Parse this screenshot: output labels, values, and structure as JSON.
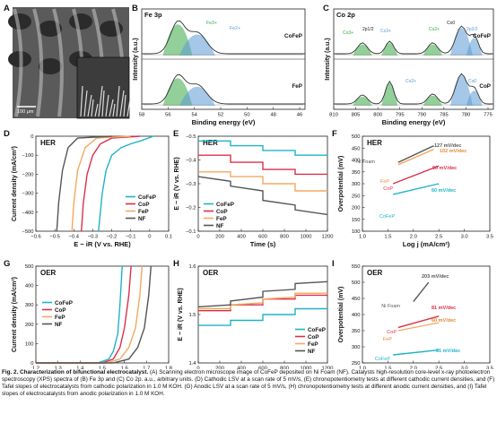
{
  "figure": {
    "caption_title": "Fig. 2. Characterization of bifunctional electrocatalyst.",
    "caption_body": "(A) Scanning electron microscope image of CoFeP deposited on Ni Foam (NF). Catalysts high-resolution core-level x-ray photoelectron spectroscopy (XPS) spectra of (B) Fe 3p and (C) Co 2p. a.u., arbitrary units. (D) Cathodic LSV at a scan rate of 5 mV/s, (E) chronopotentiometry tests at different cathodic current densities, and (F) Tafel slopes of electrocatalysts from cathodic polarization in 1.0 M KOH. (G) Anodic LSV at a scan rate of 5 mV/s, (H) chronopotentiometry tests at different anodic current densities, and (I) Tafel slopes of electrocatalysts from anodic polarization in 1.0 M KOH."
  },
  "colors": {
    "CoFeP": "#1fb3c8",
    "CoP": "#d9304a",
    "FeP": "#f4a860",
    "NF": "#555555",
    "green": "#39a845",
    "blue": "#5b9ad5"
  },
  "chart_data": [
    {
      "panel": "A",
      "type": "image",
      "scale_label": "100 μm"
    },
    {
      "panel": "B",
      "type": "line",
      "title": "Fe 3p",
      "xlabel": "Binding energy (eV)",
      "ylabel": "Intensity (a.u.)",
      "xlim": [
        58,
        45
      ],
      "xticks": [
        "58",
        "56",
        "54",
        "52",
        "50",
        "48",
        "46"
      ],
      "samples": [
        "CoFeP",
        "FeP"
      ],
      "peak_labels": [
        "Fe3+",
        "Fe2+"
      ]
    },
    {
      "panel": "C",
      "type": "line",
      "title": "Co 2p",
      "xlabel": "Binding energy (eV)",
      "ylabel": "Intensity (a.u.)",
      "xlim": [
        810,
        775
      ],
      "xticks": [
        "810",
        "805",
        "800",
        "795",
        "790",
        "785",
        "780",
        "775"
      ],
      "samples": [
        "CoFeP",
        "CoP"
      ],
      "peak_labels": [
        "Co3+",
        "2p1/2",
        "Co3+",
        "Co2+",
        "Co0",
        "2p3/2",
        "Co2+",
        "Co0"
      ]
    },
    {
      "panel": "D",
      "type": "line",
      "tag": "HER",
      "xlabel": "E − iR (V vs. RHE)",
      "ylabel": "Current density (mA/cm²)",
      "xlim": [
        -0.6,
        0.1
      ],
      "ylim": [
        -500,
        0
      ],
      "xticks": [
        "−0.6",
        "−0.5",
        "−0.4",
        "−0.3",
        "−0.2",
        "−0.1",
        "0",
        "0.1"
      ],
      "yticks": [
        "0",
        "−100",
        "−200",
        "−300",
        "−400",
        "−500"
      ],
      "series": [
        {
          "name": "CoFeP",
          "x": [
            0.02,
            -0.05,
            -0.1,
            -0.15,
            -0.2,
            -0.23,
            -0.25,
            -0.27
          ],
          "y": [
            0,
            -25,
            -40,
            -60,
            -100,
            -180,
            -300,
            -500
          ]
        },
        {
          "name": "CoP",
          "x": [
            -0.05,
            -0.2,
            -0.26,
            -0.3,
            -0.33,
            -0.35,
            -0.36
          ],
          "y": [
            0,
            -10,
            -40,
            -100,
            -200,
            -350,
            -500
          ]
        },
        {
          "name": "FeP",
          "x": [
            -0.1,
            -0.28,
            -0.34,
            -0.38,
            -0.4,
            -0.41
          ],
          "y": [
            0,
            -10,
            -60,
            -180,
            -350,
            -500
          ]
        },
        {
          "name": "NF",
          "x": [
            -0.2,
            -0.38,
            -0.43,
            -0.46,
            -0.48,
            -0.49
          ],
          "y": [
            0,
            -10,
            -60,
            -180,
            -350,
            -500
          ]
        }
      ]
    },
    {
      "panel": "E",
      "type": "line",
      "tag": "HER",
      "xlabel": "Time (s)",
      "ylabel": "E − iR (V vs. RHE)",
      "xlim": [
        0,
        1200
      ],
      "ylim": [
        -0.5,
        -0.1
      ],
      "xticks": [
        "0",
        "200",
        "400",
        "600",
        "800",
        "1000",
        "1200"
      ],
      "yticks": [
        "−0.1",
        "−0.2",
        "−0.3",
        "−0.4",
        "−0.5"
      ],
      "series": [
        {
          "name": "CoFeP",
          "x": [
            0,
            300,
            300,
            600,
            600,
            900,
            900,
            1200
          ],
          "y": [
            -0.12,
            -0.12,
            -0.14,
            -0.14,
            -0.16,
            -0.16,
            -0.18,
            -0.18
          ]
        },
        {
          "name": "CoP",
          "x": [
            0,
            300,
            300,
            600,
            600,
            900,
            900,
            1200
          ],
          "y": [
            -0.18,
            -0.18,
            -0.21,
            -0.21,
            -0.24,
            -0.24,
            -0.26,
            -0.26
          ]
        },
        {
          "name": "FeP",
          "x": [
            0,
            300,
            300,
            600,
            600,
            900,
            900,
            1200
          ],
          "y": [
            -0.25,
            -0.25,
            -0.27,
            -0.27,
            -0.3,
            -0.3,
            -0.33,
            -0.33
          ]
        },
        {
          "name": "NF",
          "x": [
            0,
            300,
            300,
            600,
            600,
            900,
            900,
            1200
          ],
          "y": [
            -0.27,
            -0.29,
            -0.31,
            -0.33,
            -0.37,
            -0.39,
            -0.41,
            -0.43
          ]
        }
      ]
    },
    {
      "panel": "F",
      "type": "line",
      "tag": "HER",
      "xlabel": "Log j (mA/cm²)",
      "ylabel": "Overpotential (mV)",
      "xlim": [
        1.0,
        3.5
      ],
      "ylim": [
        100,
        500
      ],
      "xticks": [
        "1.0",
        "1.5",
        "2.0",
        "2.5",
        "3.0",
        "3.5"
      ],
      "yticks": [
        "100",
        "150",
        "200",
        "250",
        "300",
        "350",
        "400",
        "450",
        "500"
      ],
      "series": [
        {
          "name": "CoFeP",
          "slope_label": "60 mV/dec",
          "x": [
            1.6,
            2.5
          ],
          "y": [
            255,
            300
          ]
        },
        {
          "name": "CoP",
          "slope_label": "90 mV/dec",
          "x": [
            1.6,
            2.5
          ],
          "y": [
            300,
            375
          ]
        },
        {
          "name": "FeP",
          "slope_label": "102 mV/dec",
          "x": [
            1.7,
            2.4
          ],
          "y": [
            380,
            445
          ]
        },
        {
          "name": "Ni Foam",
          "slope_label": "127 mV/dec",
          "x": [
            1.7,
            2.4
          ],
          "y": [
            390,
            460
          ]
        }
      ]
    },
    {
      "panel": "G",
      "type": "line",
      "tag": "OER",
      "xlabel": "E − iR (V vs. RHE)",
      "ylabel": "Current density (mA/cm²)",
      "xlim": [
        1.2,
        1.8
      ],
      "ylim": [
        0,
        500
      ],
      "xticks": [
        "1.2",
        "1.3",
        "1.4",
        "1.5",
        "1.6",
        "1.7",
        "1.8"
      ],
      "yticks": [
        "0",
        "100",
        "200",
        "300",
        "400",
        "500"
      ],
      "series": [
        {
          "name": "CoFeP",
          "x": [
            1.2,
            1.48,
            1.53,
            1.55,
            1.57,
            1.58,
            1.59
          ],
          "y": [
            0,
            0,
            20,
            60,
            150,
            300,
            500
          ]
        },
        {
          "name": "CoP",
          "x": [
            1.2,
            1.5,
            1.55,
            1.58,
            1.6,
            1.62,
            1.63
          ],
          "y": [
            0,
            0,
            20,
            80,
            180,
            350,
            500
          ]
        },
        {
          "name": "FeP",
          "x": [
            1.2,
            1.52,
            1.58,
            1.62,
            1.65,
            1.67,
            1.68
          ],
          "y": [
            0,
            0,
            20,
            80,
            180,
            350,
            500
          ]
        },
        {
          "name": "NF",
          "x": [
            1.2,
            1.55,
            1.62,
            1.66,
            1.69,
            1.71,
            1.72
          ],
          "y": [
            0,
            0,
            20,
            80,
            180,
            350,
            500
          ]
        }
      ]
    },
    {
      "panel": "H",
      "type": "line",
      "tag": "OER",
      "xlabel": "Time (s)",
      "ylabel": "E − iR (V vs. RHE)",
      "xlim": [
        0,
        1200
      ],
      "ylim": [
        1.4,
        1.65
      ],
      "xticks": [
        "0",
        "200",
        "400",
        "600",
        "800",
        "1000",
        "1200"
      ],
      "yticks": [
        "1.4",
        "1.5",
        "1.6"
      ],
      "series": [
        {
          "name": "CoFeP",
          "x": [
            0,
            300,
            300,
            600,
            600,
            900,
            900,
            1200
          ],
          "y": [
            1.497,
            1.497,
            1.51,
            1.51,
            1.525,
            1.525,
            1.54,
            1.54
          ]
        },
        {
          "name": "CoP",
          "x": [
            0,
            300,
            300,
            600,
            600,
            900,
            900,
            1200
          ],
          "y": [
            1.535,
            1.535,
            1.55,
            1.55,
            1.565,
            1.565,
            1.575,
            1.575
          ]
        },
        {
          "name": "FeP",
          "x": [
            0,
            300,
            300,
            600,
            600,
            900,
            900,
            1200
          ],
          "y": [
            1.54,
            1.54,
            1.55,
            1.555,
            1.565,
            1.57,
            1.58,
            1.58
          ]
        },
        {
          "name": "NF",
          "x": [
            0,
            300,
            300,
            600,
            600,
            900,
            900,
            1200
          ],
          "y": [
            1.545,
            1.55,
            1.56,
            1.57,
            1.585,
            1.59,
            1.605,
            1.61
          ]
        }
      ]
    },
    {
      "panel": "I",
      "type": "line",
      "tag": "OER",
      "xlabel": "Log j (mA/cm²)",
      "ylabel": "Overpotential (mV)",
      "xlim": [
        1.0,
        3.5
      ],
      "ylim": [
        250,
        550
      ],
      "xticks": [
        "1.0",
        "1.5",
        "2.0",
        "2.5",
        "3.0",
        "3.5"
      ],
      "yticks": [
        "250",
        "300",
        "350",
        "400",
        "450",
        "500",
        "550"
      ],
      "series": [
        {
          "name": "CoFeP",
          "slope_label": "31 mV/dec",
          "x": [
            1.6,
            2.5
          ],
          "y": [
            275,
            290
          ]
        },
        {
          "name": "CoP",
          "slope_label": "81 mV/dec",
          "x": [
            1.7,
            2.5
          ],
          "y": [
            360,
            395
          ]
        },
        {
          "name": "FeP",
          "slope_label": "60 mV/dec",
          "x": [
            1.7,
            2.5
          ],
          "y": [
            350,
            375
          ]
        },
        {
          "name": "Ni Foam",
          "slope_label": "203 mV/dec",
          "x": [
            2.0,
            2.3
          ],
          "y": [
            440,
            500
          ]
        }
      ]
    }
  ]
}
